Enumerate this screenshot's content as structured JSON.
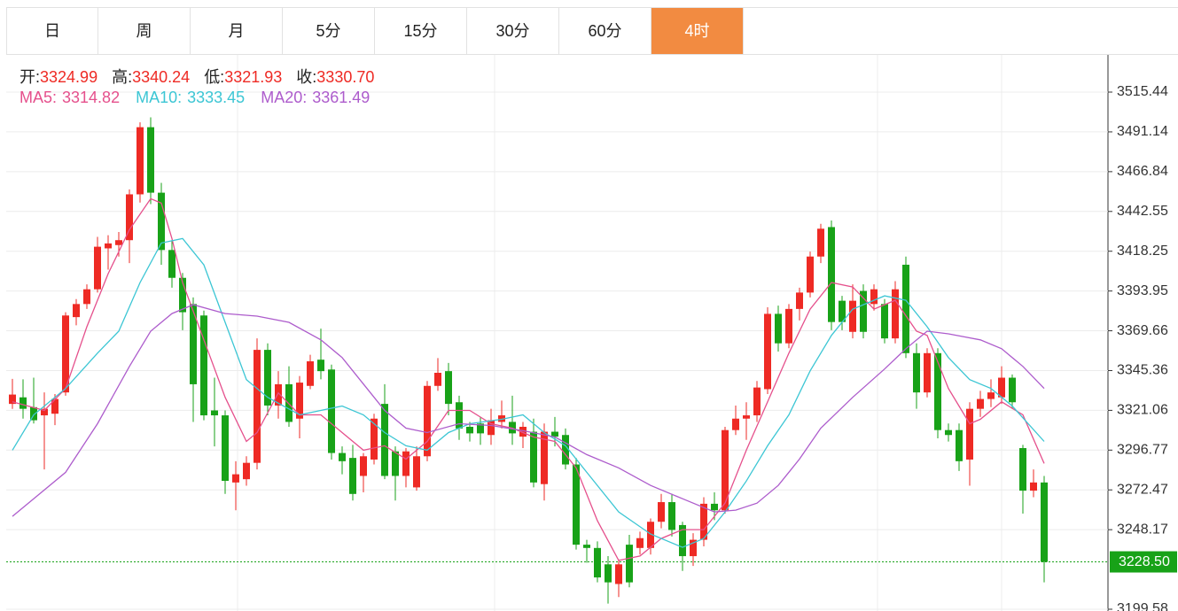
{
  "tabs": [
    {
      "label": "日",
      "active": false
    },
    {
      "label": "周",
      "active": false
    },
    {
      "label": "月",
      "active": false
    },
    {
      "label": "5分",
      "active": false
    },
    {
      "label": "15分",
      "active": false
    },
    {
      "label": "30分",
      "active": false
    },
    {
      "label": "60分",
      "active": false
    },
    {
      "label": "4时",
      "active": true
    }
  ],
  "chart_data": {
    "type": "candlestick",
    "ohlc_header": [
      {
        "label": "开:",
        "value": "3324.99"
      },
      {
        "label": "高:",
        "value": "3340.24"
      },
      {
        "label": "低:",
        "value": "3321.93"
      },
      {
        "label": "收:",
        "value": "3330.70"
      }
    ],
    "up_color": "#ee2a24",
    "down_color": "#18a218",
    "open": [
      3324.99,
      3329,
      3323,
      3318,
      3319,
      3332,
      3378,
      3386,
      3395,
      3420,
      3422,
      3425,
      3453,
      3494,
      3454,
      3419,
      3402,
      3386,
      3379,
      3321,
      3318,
      3277,
      3279,
      3289,
      3358,
      3324,
      3337,
      3316,
      3336,
      3352,
      3346,
      3295,
      3292,
      3281,
      3291,
      3325,
      3296,
      3281,
      3274,
      3293,
      3336,
      3345,
      3326,
      3311,
      3313,
      3306,
      3314,
      3314,
      3305,
      3308,
      3276,
      3308,
      3306,
      3288,
      3239,
      3237,
      3227,
      3215,
      3239,
      3237,
      3237,
      3253,
      3265,
      3251,
      3232,
      3242,
      3264,
      3260,
      3309,
      3316,
      3318,
      3334,
      3380,
      3362,
      3383,
      3393,
      3415,
      3433,
      3388,
      3369,
      3394,
      3386,
      3386,
      3365,
      3410,
      3356,
      3332,
      3356,
      3309,
      3309,
      3291,
      3322,
      3328,
      3329,
      3341,
      3298,
      3272,
      3277
    ],
    "high": [
      3340.24,
      3340,
      3341,
      3332,
      3331,
      3381,
      3389,
      3398,
      3427,
      3428,
      3430,
      3456,
      3497,
      3500,
      3460,
      3425,
      3405,
      3390,
      3382,
      3341,
      3321,
      3290,
      3293,
      3365,
      3362,
      3345,
      3348,
      3342,
      3355,
      3371,
      3349,
      3299,
      3300,
      3295,
      3319,
      3337,
      3299,
      3298,
      3299,
      3339,
      3353,
      3350,
      3330,
      3314,
      3317,
      3322,
      3327,
      3330,
      3314,
      3316,
      3313,
      3317,
      3310,
      3292,
      3242,
      3241,
      3232,
      3230,
      3245,
      3247,
      3255,
      3270,
      3270,
      3253,
      3246,
      3268,
      3271,
      3311,
      3324,
      3326,
      3339,
      3384,
      3385,
      3386,
      3396,
      3418,
      3435,
      3437,
      3391,
      3398,
      3398,
      3398,
      3389,
      3400,
      3415,
      3362,
      3359,
      3359,
      3313,
      3313,
      3326,
      3333,
      3340,
      3348,
      3343,
      3300,
      3285,
      3281
    ],
    "low": [
      3321.93,
      3316,
      3313,
      3285,
      3312,
      3330,
      3373,
      3383,
      3393,
      3407,
      3415,
      3411,
      3448,
      3447,
      3410,
      3396,
      3370,
      3314,
      3315,
      3299,
      3270,
      3260,
      3275,
      3285,
      3318,
      3316,
      3311,
      3304,
      3334,
      3340,
      3291,
      3282,
      3266,
      3271,
      3288,
      3279,
      3266,
      3274,
      3272,
      3290,
      3333,
      3318,
      3303,
      3302,
      3300,
      3300,
      3310,
      3300,
      3298,
      3274,
      3266,
      3299,
      3285,
      3236,
      3228,
      3216,
      3203,
      3207,
      3213,
      3233,
      3233,
      3249,
      3244,
      3223,
      3226,
      3238,
      3254,
      3258,
      3306,
      3303,
      3314,
      3331,
      3357,
      3359,
      3376,
      3390,
      3411,
      3370,
      3370,
      3365,
      3365,
      3382,
      3362,
      3362,
      3353,
      3322,
      3329,
      3304,
      3302,
      3284,
      3275,
      3317,
      3323,
      3325,
      3322,
      3258,
      3268,
      3216
    ],
    "close": [
      3330.7,
      3322,
      3315,
      3322,
      3328,
      3379,
      3386,
      3395,
      3421,
      3423,
      3425,
      3453,
      3494,
      3454,
      3419,
      3402,
      3381,
      3337,
      3318,
      3318,
      3278,
      3282,
      3289,
      3358,
      3324,
      3337,
      3314,
      3338,
      3351,
      3345,
      3295,
      3290,
      3270,
      3293,
      3316,
      3281,
      3281,
      3296,
      3293,
      3336,
      3344,
      3325,
      3310,
      3307,
      3307,
      3315,
      3318,
      3307,
      3311,
      3277,
      3308,
      3305,
      3288,
      3239,
      3237,
      3219,
      3216,
      3227,
      3216,
      3243,
      3253,
      3265,
      3248,
      3232,
      3242,
      3264,
      3260,
      3309,
      3316,
      3318,
      3335,
      3380,
      3362,
      3383,
      3393,
      3415,
      3432,
      3375,
      3375,
      3388,
      3369,
      3395,
      3365,
      3395,
      3356,
      3332,
      3356,
      3309,
      3306,
      3290,
      3322,
      3328,
      3332,
      3341,
      3326,
      3272,
      3277,
      3228.5
    ],
    "ma": [
      {
        "name": "MA5:",
        "latest": "3314.82",
        "color": "#e5508c",
        "x": [
          0,
          3,
          5,
          7,
          9,
          11,
          13,
          14,
          15,
          16,
          18,
          20,
          22,
          23,
          25,
          27,
          29,
          31,
          33,
          35,
          37,
          39,
          41,
          43,
          45,
          47,
          49,
          51,
          53,
          55,
          57,
          59,
          61,
          63,
          65,
          67,
          69,
          71,
          73,
          75,
          77,
          79,
          81,
          83,
          85,
          86,
          88,
          90,
          91,
          93,
          95,
          97
        ],
        "values": [
          3326.3,
          3321,
          3334.4,
          3372.1,
          3404.5,
          3431.4,
          3450.3,
          3447.6,
          3426,
          3399.1,
          3364.1,
          3329,
          3302.1,
          3307.5,
          3331.7,
          3318.3,
          3318.3,
          3307.5,
          3296.7,
          3299.4,
          3291.3,
          3302.1,
          3321,
          3321,
          3312.9,
          3310.2,
          3304.8,
          3302.1,
          3285.9,
          3253.6,
          3229.4,
          3232.1,
          3242.8,
          3248.2,
          3248.2,
          3264.4,
          3296.7,
          3326.3,
          3356,
          3382.9,
          3399.1,
          3396.4,
          3382.9,
          3388.3,
          3369.4,
          3366.8,
          3334.4,
          3312.9,
          3315.6,
          3326.3,
          3318.3,
          3288.6
        ]
      },
      {
        "name": "MA10:",
        "latest": "3333.45",
        "color": "#3cc6d4",
        "x": [
          0,
          2,
          5,
          8,
          10,
          12,
          14,
          16,
          18,
          20,
          22,
          24,
          27,
          31,
          33,
          35,
          37,
          39,
          41,
          43,
          46,
          48,
          50,
          52,
          54,
          57,
          60,
          63,
          65,
          67,
          69,
          71,
          73,
          75,
          77,
          79,
          82,
          84,
          86,
          88,
          90,
          92,
          94,
          97
        ],
        "values": [
          3296.7,
          3318.3,
          3334.4,
          3356,
          3369.4,
          3399.1,
          3423.3,
          3426,
          3409.9,
          3374.8,
          3339.8,
          3329,
          3318.3,
          3323.7,
          3318.3,
          3307.5,
          3299.4,
          3296.7,
          3307.5,
          3312.9,
          3315.6,
          3318.3,
          3307.5,
          3299.4,
          3283.2,
          3259,
          3245.5,
          3237.4,
          3242.8,
          3259,
          3277.9,
          3299.4,
          3318.3,
          3345.2,
          3366.8,
          3382.9,
          3391,
          3388.3,
          3372.1,
          3353.3,
          3339.8,
          3334.4,
          3323.7,
          3302.1
        ]
      },
      {
        "name": "MA20:",
        "latest": "3361.49",
        "color": "#ad5ccc",
        "x": [
          0,
          2,
          5,
          8,
          11,
          13,
          15,
          17,
          20,
          23,
          26,
          29,
          31,
          33,
          35,
          37,
          39,
          42,
          45,
          48,
          51,
          54,
          57,
          60,
          63,
          66,
          68,
          70,
          72,
          74,
          76,
          79,
          82,
          84,
          86,
          88,
          91,
          93,
          95,
          97
        ],
        "values": [
          3256.3,
          3267.1,
          3283.2,
          3312.9,
          3347.9,
          3369.4,
          3380.2,
          3385.6,
          3380.2,
          3378.6,
          3374.8,
          3364.1,
          3353.3,
          3337.1,
          3321,
          3310.2,
          3307.5,
          3312.9,
          3311.8,
          3308.6,
          3304.8,
          3294,
          3285.9,
          3275.2,
          3267.1,
          3259,
          3260.1,
          3264.4,
          3275.2,
          3291.3,
          3310.2,
          3329,
          3346.3,
          3358.7,
          3369.4,
          3367.8,
          3364.1,
          3358.7,
          3347.9,
          3334.4
        ]
      }
    ],
    "ylim": [
      3198.5,
      3538.16
    ],
    "yticks": [
      {
        "value": 3515.44,
        "label": "3515.44"
      },
      {
        "value": 3491.14,
        "label": "3491.14"
      },
      {
        "value": 3466.84,
        "label": "3466.84"
      },
      {
        "value": 3442.55,
        "label": "3442.55"
      },
      {
        "value": 3418.25,
        "label": "3418.25"
      },
      {
        "value": 3393.95,
        "label": "3393.95"
      },
      {
        "value": 3369.66,
        "label": "3369.66"
      },
      {
        "value": 3345.36,
        "label": "3345.36"
      },
      {
        "value": 3321.06,
        "label": "3321.06"
      },
      {
        "value": 3296.77,
        "label": "3296.77"
      },
      {
        "value": 3272.47,
        "label": "3272.47"
      },
      {
        "value": 3248.17,
        "label": "3248.17"
      },
      {
        "value": 3199.58,
        "label": "3199.58"
      }
    ],
    "grid": true,
    "last_price": {
      "value": 3228.5,
      "label": "3228.50",
      "color": "#18a218"
    }
  }
}
